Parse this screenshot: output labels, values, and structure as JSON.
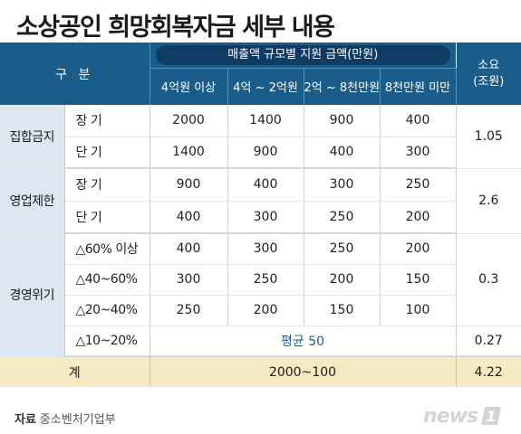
{
  "title": "소상공인 희망회복자금 세부 내용",
  "header": {
    "gubun": "구 분",
    "group_label": "매출액 규모별 지원 금액(만원)",
    "columns": [
      "4억원 이상",
      "4억 ~ 2억원",
      "2억 ~ 8천만원",
      "8천만원 미만"
    ],
    "total_line1": "소요",
    "total_line2": "(조원)"
  },
  "groups": [
    {
      "category": "집합금지",
      "total": "1.05",
      "rows": [
        {
          "label": "장 기",
          "values": [
            "2000",
            "1400",
            "900",
            "400"
          ]
        },
        {
          "label": "단 기",
          "values": [
            "1400",
            "900",
            "400",
            "300"
          ]
        }
      ]
    },
    {
      "category": "영업제한",
      "total": "2.6",
      "rows": [
        {
          "label": "장 기",
          "values": [
            "900",
            "400",
            "300",
            "250"
          ]
        },
        {
          "label": "단 기",
          "values": [
            "400",
            "300",
            "250",
            "200"
          ]
        }
      ]
    },
    {
      "category": "경영위기",
      "total": "0.3",
      "rows": [
        {
          "label": "△60% 이상",
          "values": [
            "400",
            "300",
            "250",
            "200"
          ]
        },
        {
          "label": "△40~60%",
          "values": [
            "300",
            "250",
            "200",
            "150"
          ]
        },
        {
          "label": "△20~40%",
          "values": [
            "250",
            "200",
            "150",
            "100"
          ]
        }
      ],
      "extra": {
        "label": "△10~20%",
        "average": "평균 50",
        "total": "0.27"
      }
    }
  ],
  "sum_row": {
    "label": "계",
    "range": "2000~100",
    "total": "4.22"
  },
  "footer": {
    "source_label": "자료",
    "source": "중소벤처기업부"
  },
  "logo": {
    "text": "news",
    "mark": "1"
  },
  "colors": {
    "header": "#1b5d8a",
    "pill": "#0e3c63",
    "category": "#dde7f1",
    "sum": "#f6eac3",
    "logo": "#d4d4d4"
  }
}
